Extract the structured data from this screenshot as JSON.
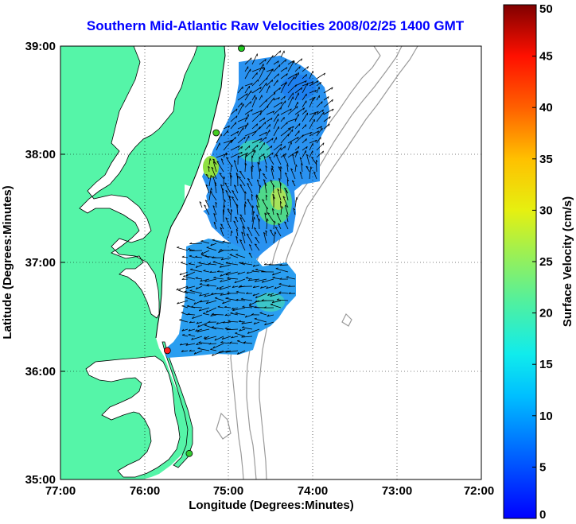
{
  "title": "Southern Mid-Atlantic Raw Velocities 2008/02/25 1400 GMT",
  "x_axis": {
    "label": "Longitude (Degrees:Minutes)",
    "ticks": [
      "77:00",
      "76:00",
      "75:00",
      "74:00",
      "73:00",
      "72:00"
    ]
  },
  "y_axis": {
    "label": "Latitude (Degrees:Minutes)",
    "ticks": [
      "39:00",
      "38:00",
      "37:00",
      "36:00",
      "35:00"
    ]
  },
  "colorbar": {
    "label": "Surface Velocity (cm/s)",
    "ticks": [
      "50",
      "45",
      "40",
      "35",
      "30",
      "25",
      "20",
      "15",
      "10",
      "5",
      "0"
    ],
    "range": [
      0,
      50
    ],
    "colormap": "jet"
  },
  "map": {
    "lon_range": [
      -77,
      -72
    ],
    "lat_range": [
      35,
      39
    ],
    "land_color": "#55f5a8",
    "water_color": "#ffffff",
    "coast_color": "#000000",
    "bathymetry_color": "#9a9a9a",
    "grid": "dotted"
  },
  "stations": [
    {
      "name": "",
      "lon": -74.85,
      "lat": 38.98,
      "color": "#22cc22"
    },
    {
      "name": "",
      "lon": -75.15,
      "lat": 38.2,
      "color": "#44cc22"
    },
    {
      "name": "",
      "lon": -75.73,
      "lat": 36.19,
      "color": "#ff2020"
    },
    {
      "name": "",
      "lon": -75.47,
      "lat": 35.24,
      "color": "#33cc33"
    }
  ]
}
